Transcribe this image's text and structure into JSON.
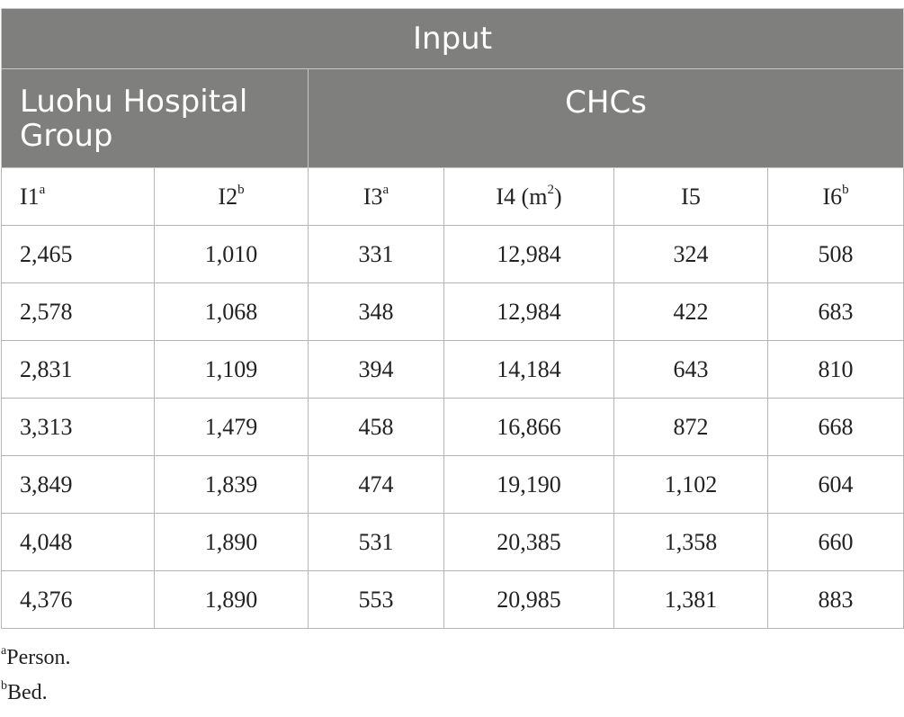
{
  "header": {
    "input": "Input",
    "luohu": "Luohu Hospital Group",
    "chcs": "CHCs"
  },
  "columns": [
    {
      "label": "I1",
      "sup": "a"
    },
    {
      "label": "I2",
      "sup": "b"
    },
    {
      "label": "I3",
      "sup": "a"
    },
    {
      "label": "I4 (m",
      "sup": "2",
      "suffix": ")"
    },
    {
      "label": "I5",
      "sup": ""
    },
    {
      "label": "I6",
      "sup": "b"
    }
  ],
  "rows": [
    [
      "2,465",
      "1,010",
      "331",
      "12,984",
      "324",
      "508"
    ],
    [
      "2,578",
      "1,068",
      "348",
      "12,984",
      "422",
      "683"
    ],
    [
      "2,831",
      "1,109",
      "394",
      "14,184",
      "643",
      "810"
    ],
    [
      "3,313",
      "1,479",
      "458",
      "16,866",
      "872",
      "668"
    ],
    [
      "3,849",
      "1,839",
      "474",
      "19,190",
      "1,102",
      "604"
    ],
    [
      "4,048",
      "1,890",
      "531",
      "20,385",
      "1,358",
      "660"
    ],
    [
      "4,376",
      "1,890",
      "553",
      "20,985",
      "1,381",
      "883"
    ]
  ],
  "footnotes": [
    {
      "mark": "a",
      "text": "Person."
    },
    {
      "mark": "b",
      "text": "Bed."
    }
  ]
}
